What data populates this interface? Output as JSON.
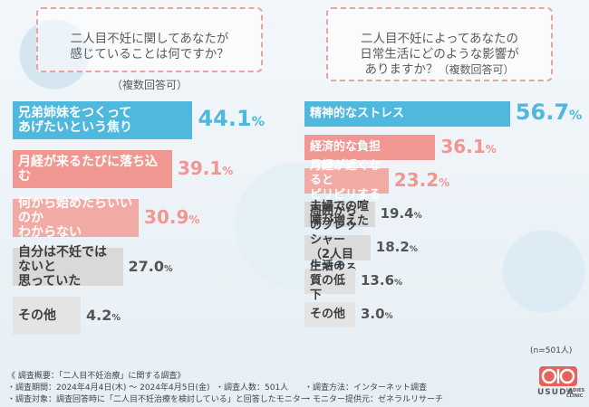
{
  "chart_data": [
    {
      "type": "bar",
      "title": "二人目不妊に関してあなたが\n感じていることは何ですか？",
      "subtitle": "（複数回答可）",
      "categories": [
        "兄弟姉妹をつくって\nあげたいという焦り",
        "月経が来るたびに落ち込む",
        "何から始めたらいいのか\nわからない",
        "自分は不妊ではないと\n思っていた",
        "その他"
      ],
      "values": [
        44.1,
        39.1,
        30.9,
        27.0,
        4.2
      ],
      "unit": "%",
      "colors": [
        "#4fb8dd",
        "#f09792",
        "#f2aaa5",
        "#d9d9d9",
        "#e4e4e4"
      ],
      "pct_colors": [
        "#4fb8dd",
        "#f09792",
        "#f09792",
        "#555555",
        "#555555"
      ]
    },
    {
      "type": "bar",
      "title": "二人目不妊によってあなたの\n日常生活にどのような影響が\nありますか？",
      "subtitle": "（複数回答可）",
      "categories": [
        "精神的なストレス",
        "経済的な負担",
        "月経が近くなると\nピリピリする",
        "夫婦での喧嘩が増えた",
        "周囲からのプレッシャー\n（2人目に対する期待）",
        "生活の質の低下",
        "その他"
      ],
      "values": [
        56.7,
        36.1,
        23.2,
        19.4,
        18.2,
        13.6,
        3.0
      ],
      "unit": "%",
      "colors": [
        "#4fb8dd",
        "#f09792",
        "#f2aaa5",
        "#d9d9d9",
        "#dcdcdc",
        "#e0e0e0",
        "#e4e4e4"
      ],
      "pct_colors": [
        "#4fb8dd",
        "#f09792",
        "#f09792",
        "#555555",
        "#555555",
        "#555555",
        "#555555"
      ],
      "n_label": "(n=501人)"
    }
  ],
  "footer": {
    "overview": "《 調査概要：「二人目不妊治療」に関する調査》",
    "period": "・調査期間：2024年4月4日(木) ～ 2024年4月5日(金)",
    "people": "・調査人数：501人",
    "method": "・調査方法：インターネット調査",
    "target": "・調査対象：調査回答時に「二人目不妊治療を検討している」と回答したモニター",
    "provider": "・モニター提供元：ゼネラルリサーチ"
  },
  "logo": {
    "name": "USUDA",
    "sub": "LADIES CLINIC"
  }
}
